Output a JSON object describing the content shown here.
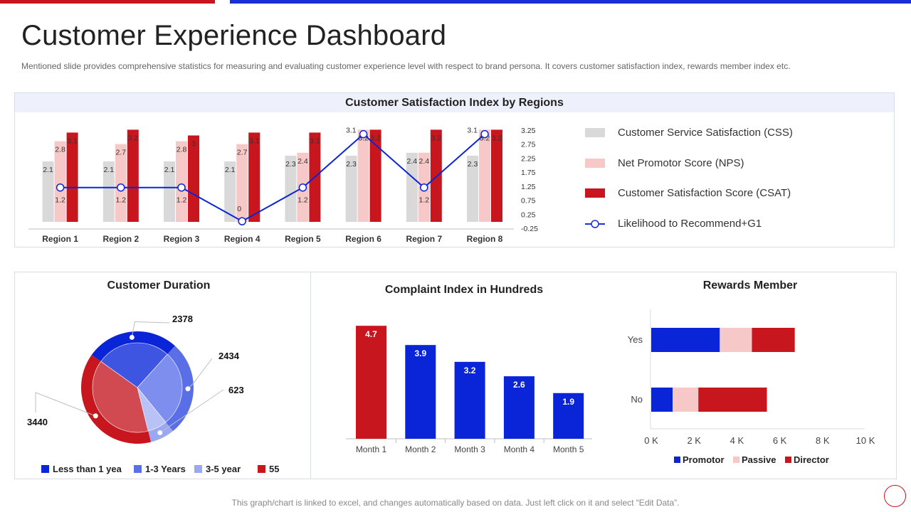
{
  "header": {
    "title": "Customer Experience Dashboard",
    "subtitle": "Mentioned slide provides comprehensive statistics for measuring and evaluating customer experience level with respect to brand persona. It covers customer satisfaction index, rewards member index etc."
  },
  "colors": {
    "red": "#c8161e",
    "blue": "#0a24d8",
    "grey": "#d9d9d9",
    "pink": "#f7c8c8"
  },
  "footer": {
    "note": "This graph/chart is linked to excel, and changes automatically based on data. Just left click on it and select “Edit Data”."
  },
  "chart_data": [
    {
      "type": "bar",
      "title": "Customer Satisfaction Index by Regions",
      "categories": [
        "Region 1",
        "Region 2",
        "Region 3",
        "Region 4",
        "Region 5",
        "Region 6",
        "Region 7",
        "Region 8"
      ],
      "series": [
        {
          "name": "Customer Service Satisfaction (CSS)",
          "values": [
            2.1,
            2.1,
            2.1,
            2.1,
            2.3,
            2.3,
            2.4,
            2.3
          ]
        },
        {
          "name": "Net Promotor Score (NPS)",
          "values": [
            2.8,
            2.7,
            2.8,
            2.7,
            2.4,
            3.2,
            2.4,
            3.2
          ]
        },
        {
          "name": "Customer Satisfaction Score (CSAT)",
          "values": [
            3.1,
            3.2,
            3.0,
            3.1,
            3.1,
            3.2,
            3.2,
            3.2
          ]
        },
        {
          "name": "Likelihood to Recommend+G1",
          "type": "line",
          "values": [
            1.2,
            1.2,
            1.2,
            0,
            1.2,
            3.1,
            1.2,
            3.1
          ]
        }
      ],
      "line_labels": [
        "1.2",
        "1.2",
        "1.2",
        "0",
        "1.2",
        "3.1",
        "1.2",
        "3.1"
      ],
      "bar_labels": {
        "css": [
          "2.1",
          "2.1",
          "2.1",
          "2.1",
          "2.3",
          "2.3",
          "2.4",
          "2.3"
        ],
        "nps": [
          "2.8",
          "2.7",
          "2.8",
          "2.7",
          "2.4",
          "3.2",
          "2.4",
          "3.2"
        ],
        "csat": [
          "3.1",
          "3.2",
          "3",
          "3.1",
          "3.1",
          "3.2",
          "3.2",
          "3.2"
        ]
      },
      "y2_ticks": [
        "3.25",
        "2.75",
        "2.25",
        "1.75",
        "1.25",
        "0.75",
        "0.25",
        "-0.25"
      ],
      "y2lim": [
        -0.25,
        3.25
      ]
    },
    {
      "type": "pie",
      "title": "Customer Duration",
      "labels": [
        "Less than 1 yea",
        "1-3 Years",
        "3-5 year",
        "55"
      ],
      "values": [
        2378,
        2434,
        623,
        3440
      ],
      "value_labels": [
        "2378",
        "2434",
        "623",
        "3440"
      ]
    },
    {
      "type": "bar",
      "title": "Complaint Index in Hundreds",
      "categories": [
        "Month 1",
        "Month 2",
        "Month 3",
        "Month 4",
        "Month 5"
      ],
      "values": [
        4.7,
        3.9,
        3.2,
        2.6,
        1.9
      ],
      "value_labels": [
        "4.7",
        "3.9",
        "3.2",
        "2.6",
        "1.9"
      ],
      "ylim": [
        0,
        5
      ]
    },
    {
      "type": "bar",
      "orientation": "horizontal",
      "stacked": true,
      "title": "Rewards Member",
      "categories": [
        "Yes",
        "No"
      ],
      "series": [
        {
          "name": "Promotor",
          "values": [
            3200,
            1000
          ]
        },
        {
          "name": "Passive",
          "values": [
            1500,
            1200
          ]
        },
        {
          "name": "Director",
          "values": [
            2000,
            3200
          ]
        }
      ],
      "x_ticks": [
        "0 K",
        "2 K",
        "4 K",
        "6 K",
        "8 K",
        "10 K"
      ],
      "xlim": [
        0,
        10000
      ]
    }
  ]
}
